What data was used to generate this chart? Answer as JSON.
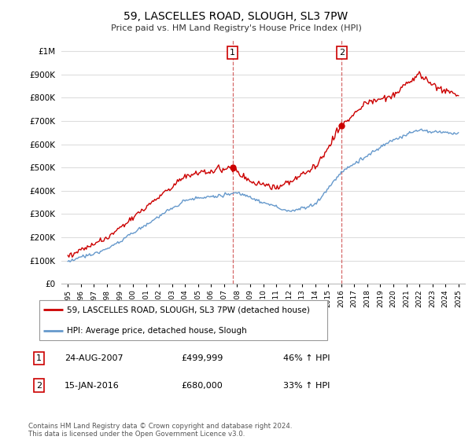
{
  "title": "59, LASCELLES ROAD, SLOUGH, SL3 7PW",
  "subtitle": "Price paid vs. HM Land Registry's House Price Index (HPI)",
  "line1_label": "59, LASCELLES ROAD, SLOUGH, SL3 7PW (detached house)",
  "line2_label": "HPI: Average price, detached house, Slough",
  "sale1_date": 2007.65,
  "sale1_price": 499999,
  "sale1_label": "24-AUG-2007",
  "sale1_pct": "46% ↑ HPI",
  "sale2_date": 2016.04,
  "sale2_price": 680000,
  "sale2_label": "15-JAN-2016",
  "sale2_pct": "33% ↑ HPI",
  "footer": "Contains HM Land Registry data © Crown copyright and database right 2024.\nThis data is licensed under the Open Government Licence v3.0.",
  "red_color": "#cc0000",
  "blue_color": "#6699cc",
  "grid_color": "#dddddd",
  "background": "#ffffff",
  "ylim": [
    0,
    1050000
  ],
  "xlim": [
    1994.5,
    2025.5
  ]
}
